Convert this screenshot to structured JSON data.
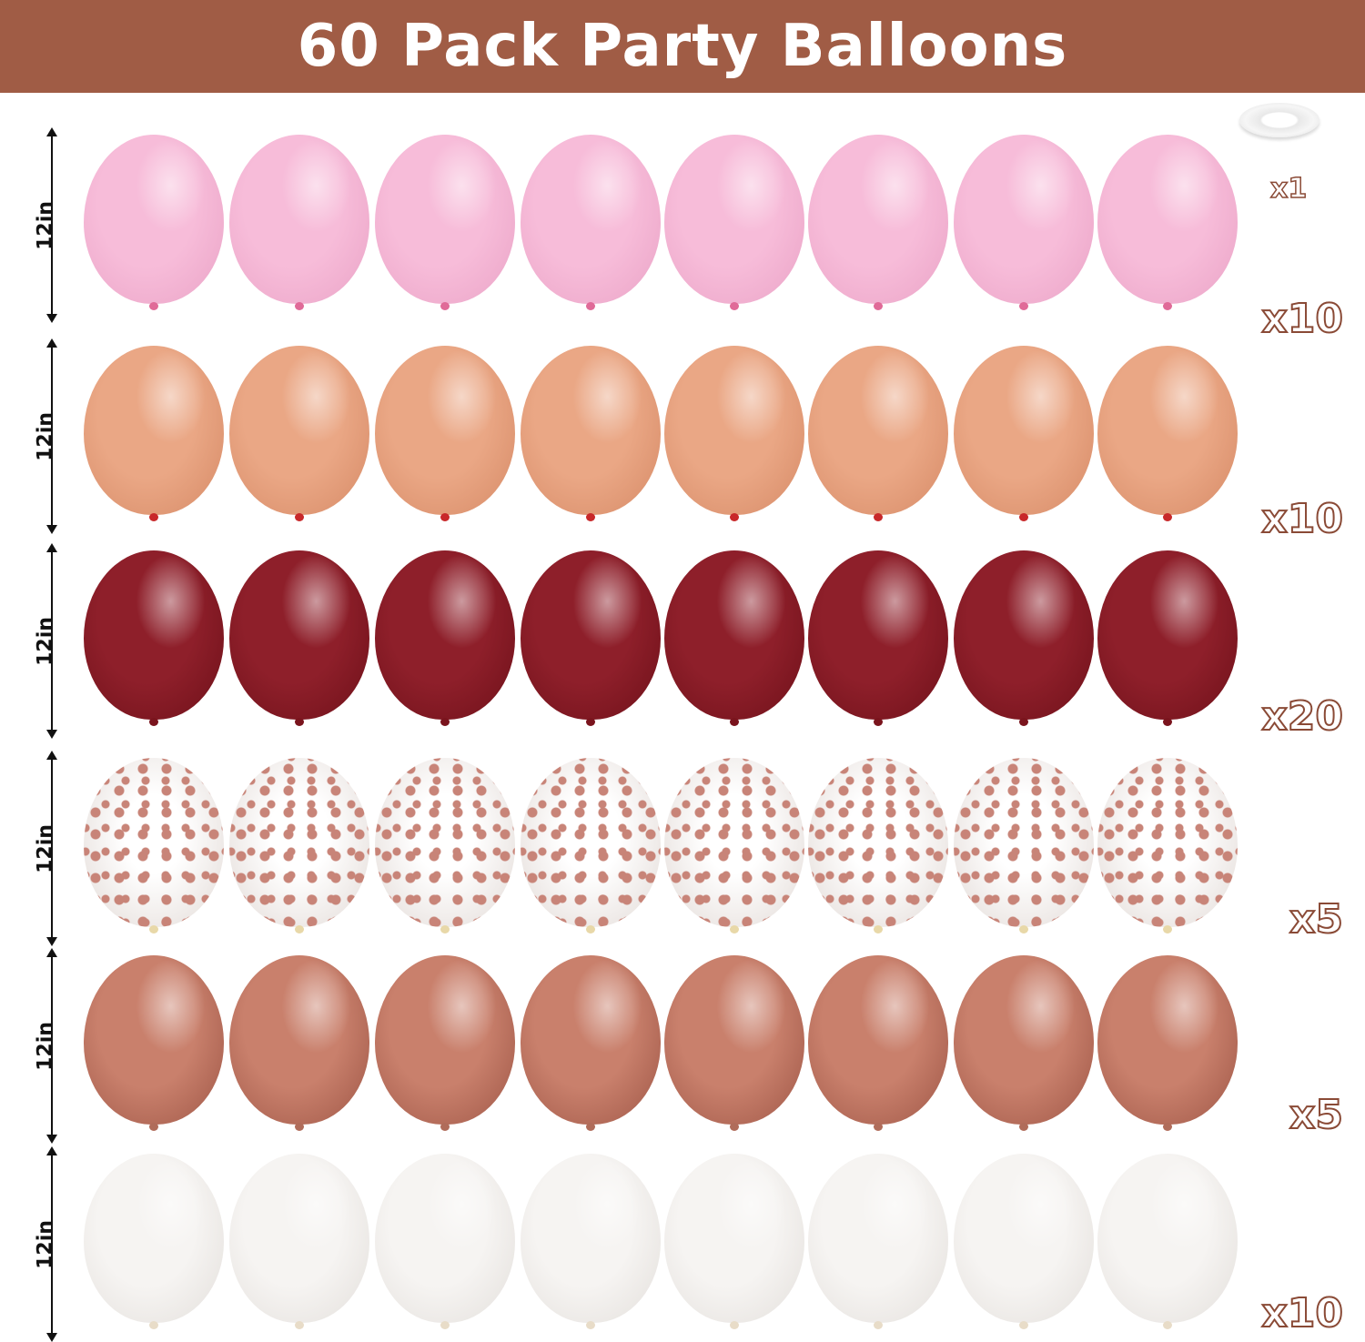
{
  "title": "60 Pack Party Balloons",
  "ribbon": {
    "count_label": "x1",
    "icon": "ribbon-roll-icon"
  },
  "rows": [
    {
      "size_label": "12in",
      "count_label": "x10",
      "type": "pastel pink",
      "color": "#f7bcd9",
      "shade": "#eaa3c6",
      "knot": "#e06a98"
    },
    {
      "size_label": "12in",
      "count_label": "x10",
      "type": "peach",
      "color": "#eaa785",
      "shade": "#d68a66",
      "knot": "#c8282a"
    },
    {
      "size_label": "12in",
      "count_label": "x20",
      "type": "burgundy",
      "color": "#8e1f2a",
      "shade": "#6e1019",
      "knot": "#7a141d"
    },
    {
      "size_label": "12in",
      "count_label": "x5",
      "type": "rose gold confetti",
      "color": "#f4f0ee",
      "shade": "#e2dad6",
      "knot": "#e8d8a8",
      "confetti": "#c88478"
    },
    {
      "size_label": "12in",
      "count_label": "x5",
      "type": "metallic rose gold",
      "color": "#c9806c",
      "shade": "#9e5646",
      "knot": "#b06c5a"
    },
    {
      "size_label": "12in",
      "count_label": "x10",
      "type": "pearl white",
      "color": "#f6f4f2",
      "shade": "#e3dfdb",
      "knot": "#e8dcc8"
    }
  ]
}
